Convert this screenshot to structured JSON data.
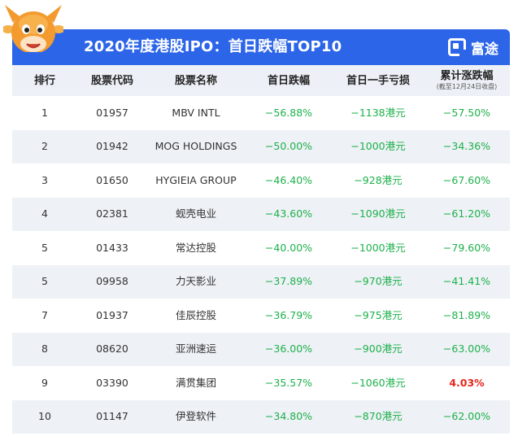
{
  "banner": {
    "title": "2020年度港股IPO：首日跌幅TOP10",
    "brand_name": "富途",
    "brand_icon": "futu-logo-icon",
    "mascot_icon": "cow-mascot-icon"
  },
  "table": {
    "headers": {
      "rank": "排行",
      "code": "股票代码",
      "name": "股票名称",
      "first_day_drop": "首日跌幅",
      "first_day_lot_loss": "首日一手亏损",
      "cumulative": "累计涨跌幅",
      "cumulative_note": "(截至12月24日收盘)"
    },
    "rows": [
      {
        "rank": "1",
        "code": "01957",
        "name": "MBV INTL",
        "drop": "−56.88%",
        "loss": "−1138港元",
        "cum": "−57.50%",
        "cum_positive": false
      },
      {
        "rank": "2",
        "code": "01942",
        "name": "MOG HOLDINGS",
        "drop": "−50.00%",
        "loss": "−1000港元",
        "cum": "−34.36%",
        "cum_positive": false
      },
      {
        "rank": "3",
        "code": "01650",
        "name": "HYGIEIA GROUP",
        "drop": "−46.40%",
        "loss": "−928港元",
        "cum": "−67.60%",
        "cum_positive": false
      },
      {
        "rank": "4",
        "code": "02381",
        "name": "蚬壳电业",
        "drop": "−43.60%",
        "loss": "−1090港元",
        "cum": "−61.20%",
        "cum_positive": false
      },
      {
        "rank": "5",
        "code": "01433",
        "name": "常达控股",
        "drop": "−40.00%",
        "loss": "−1000港元",
        "cum": "−79.60%",
        "cum_positive": false
      },
      {
        "rank": "5",
        "code": "09958",
        "name": "力天影业",
        "drop": "−37.89%",
        "loss": "−970港元",
        "cum": "−41.41%",
        "cum_positive": false
      },
      {
        "rank": "7",
        "code": "01937",
        "name": "佳辰控股",
        "drop": "−36.79%",
        "loss": "−975港元",
        "cum": "−81.89%",
        "cum_positive": false
      },
      {
        "rank": "8",
        "code": "08620",
        "name": "亚洲速运",
        "drop": "−36.00%",
        "loss": "−900港元",
        "cum": "−63.00%",
        "cum_positive": false
      },
      {
        "rank": "9",
        "code": "03390",
        "name": "满贯集团",
        "drop": "−35.57%",
        "loss": "−1060港元",
        "cum": "4.03%",
        "cum_positive": true
      },
      {
        "rank": "10",
        "code": "01147",
        "name": "伊登软件",
        "drop": "−34.80%",
        "loss": "−870港元",
        "cum": "−62.00%",
        "cum_positive": false
      }
    ]
  },
  "colors": {
    "banner": "#2c65e8",
    "negative": "#1db14b",
    "positive": "#e8251c",
    "row_alt": "#eef1f6",
    "header_bg": "#edf1f7"
  }
}
